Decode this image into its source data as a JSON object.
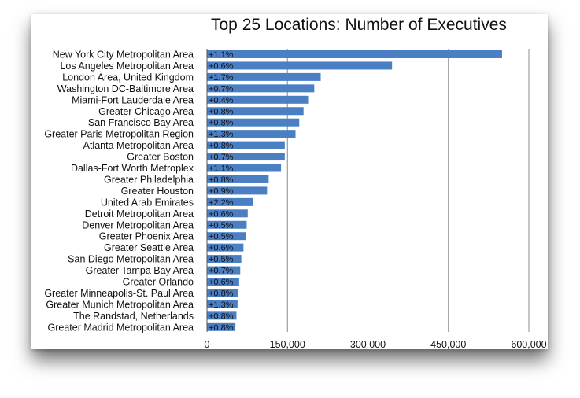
{
  "chart_data": {
    "type": "bar",
    "orientation": "horizontal",
    "title": "Top 25 Locations: Number of Executives",
    "xlabel": "",
    "ylabel": "",
    "xlim": [
      0,
      600000
    ],
    "xticks": [
      "0",
      "150,000",
      "300,000",
      "450,000",
      "600,000"
    ],
    "grid": true,
    "legend": "none",
    "bar_color": "#4a7fc4",
    "categories": [
      "New York City Metropolitan Area",
      "Los Angeles Metropolitan Area",
      "London Area, United Kingdom",
      "Washington DC-Baltimore Area",
      "Miami-Fort Lauderdale Area",
      "Greater Chicago Area",
      "San Francisco Bay Area",
      "Greater Paris Metropolitan Region",
      "Atlanta Metropolitan Area",
      "Greater Boston",
      "Dallas-Fort Worth Metroplex",
      "Greater Philadelphia",
      "Greater Houston",
      "United Arab Emirates",
      "Detroit Metropolitan Area",
      "Denver Metropolitan Area",
      "Greater Phoenix Area",
      "Greater Seattle Area",
      "San Diego Metropolitan Area",
      "Greater Tampa Bay Area",
      "Greater Orlando",
      "Greater Minneapolis-St. Paul Area",
      "Greater Munich Metropolitan Area",
      "The Randstad, Netherlands",
      "Greater Madrid Metropolitan Area"
    ],
    "values": [
      550000,
      345000,
      212000,
      200000,
      190000,
      180000,
      172000,
      165000,
      145000,
      145000,
      138000,
      115000,
      112000,
      86000,
      76000,
      74000,
      72000,
      68000,
      64000,
      62000,
      60000,
      58000,
      57000,
      55000,
      53000
    ],
    "data_labels": [
      "+1.1%",
      "+0.6%",
      "+1.7%",
      "+0.7%",
      "+0.4%",
      "+0.8%",
      "+0.8%",
      "+1.3%",
      "+0.8%",
      "+0.7%",
      "+1.1%",
      "+0.8%",
      "+0.9%",
      "+2.2%",
      "+0.6%",
      "+0.5%",
      "+0.5%",
      "+0.6%",
      "+0.5%",
      "+0.7%",
      "+0.6%",
      "+0.8%",
      "+1.3%",
      "+0.8%",
      "+0.8%"
    ]
  }
}
